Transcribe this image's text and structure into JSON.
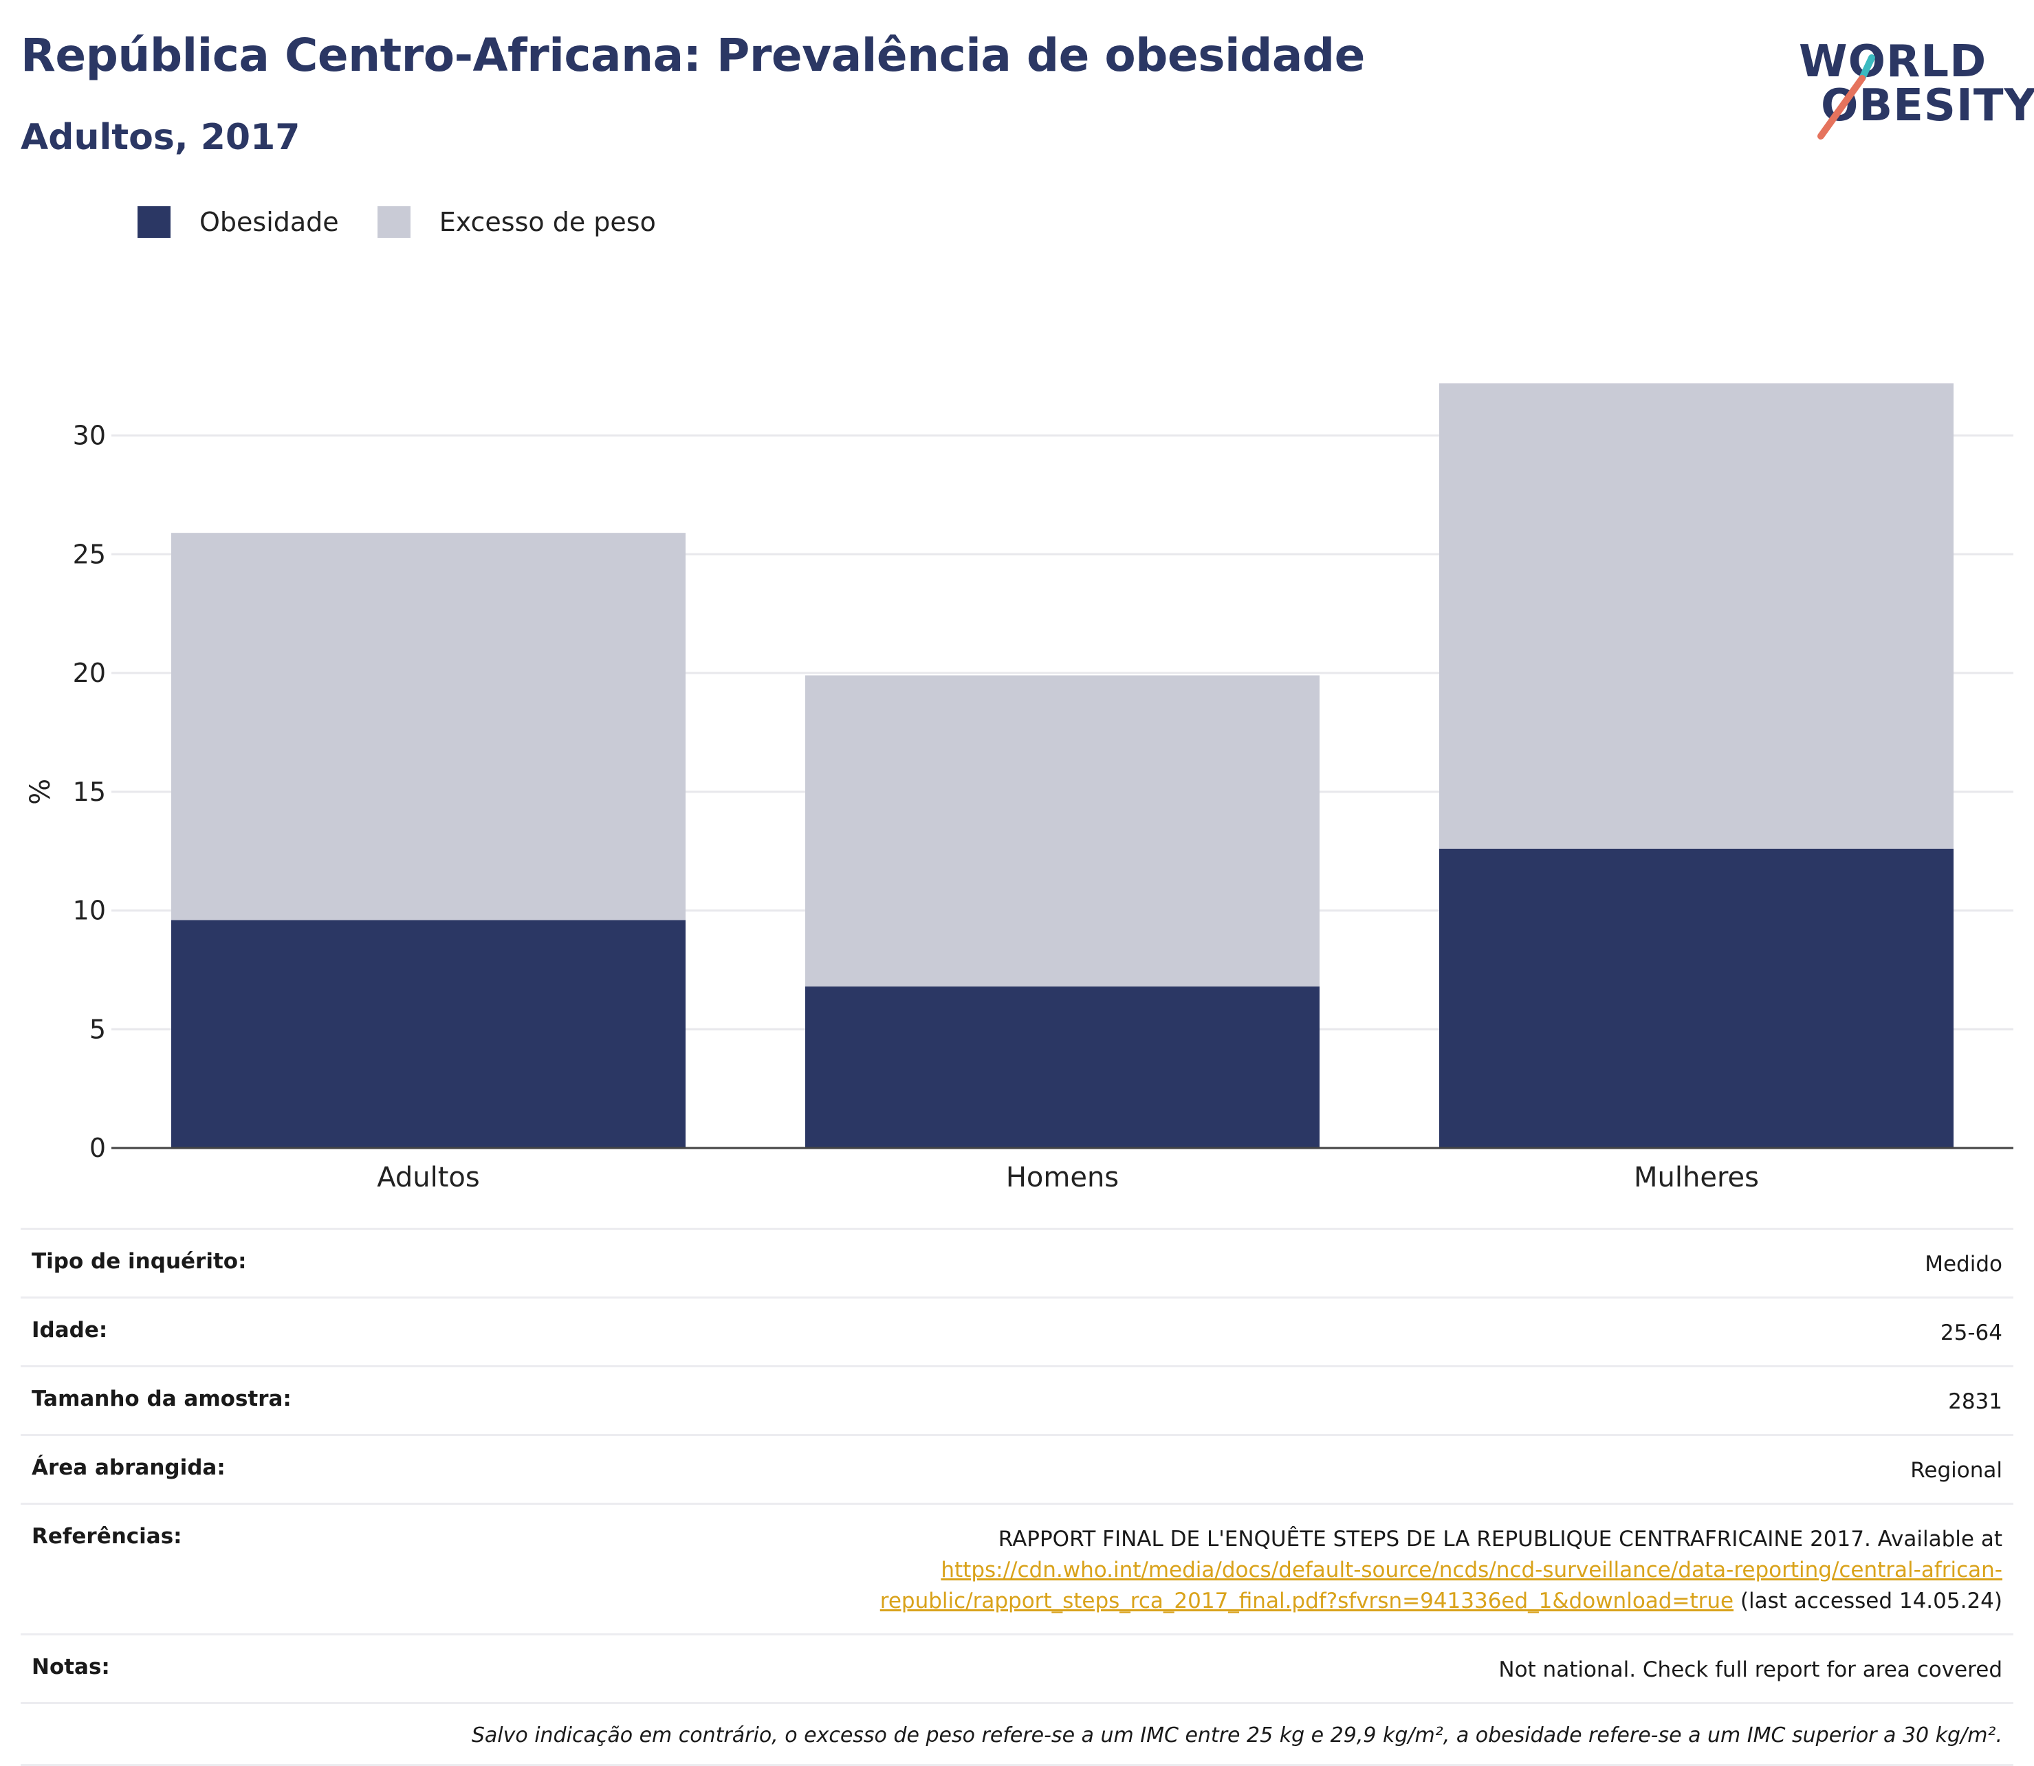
{
  "header": {
    "title": "República Centro-Africana: Prevalência de obesidade",
    "subtitle": "Adultos, 2017",
    "logo": {
      "line1": "WORLD",
      "line2": "OBESITY",
      "accent_teal": "#3bbac0",
      "accent_coral": "#e5735d"
    }
  },
  "legend": [
    {
      "label": "Obesidade",
      "color": "#2b3764"
    },
    {
      "label": "Excesso de peso",
      "color": "#c9cbd6"
    }
  ],
  "chart_data": {
    "type": "bar",
    "stacked": true,
    "categories": [
      "Adultos",
      "Homens",
      "Mulheres"
    ],
    "series": [
      {
        "name": "Obesidade",
        "color": "#2b3764",
        "values": [
          9.6,
          6.8,
          12.6
        ]
      },
      {
        "name": "Excesso de peso",
        "color": "#c9cbd6",
        "values": [
          16.3,
          13.1,
          19.6
        ]
      }
    ],
    "ylabel": "%",
    "ylim": [
      0,
      33
    ],
    "yticks": [
      0,
      5,
      10,
      15,
      20,
      25,
      30
    ],
    "grid": true,
    "legend_position": "top-left"
  },
  "info": {
    "rows": [
      {
        "label": "Tipo de inquérito:",
        "value": "Medido"
      },
      {
        "label": "Idade:",
        "value": "25-64"
      },
      {
        "label": "Tamanho da amostra:",
        "value": "2831"
      },
      {
        "label": "Área abrangida:",
        "value": "Regional"
      }
    ],
    "references": {
      "label": "Referências:",
      "text_before": "RAPPORT FINAL DE L'ENQUÊTE STEPS DE LA REPUBLIQUE CENTRAFRICAINE 2017. Available at",
      "link_line1": "https://cdn.who.int/media/docs/default-source/ncds/ncd-surveillance/data-reporting/central-african-",
      "link_line2": "republic/rapport_steps_rca_2017_final.pdf?sfvrsn=941336ed_1&download=true",
      "text_after": "(last accessed 14.05.24)"
    },
    "notes": {
      "label": "Notas:",
      "value": "Not national. Check full report for area covered"
    },
    "footnote": "Salvo indicação em contrário, o excesso de peso refere-se a um IMC entre 25 kg e 29,9 kg/m², a obesidade refere-se a um IMC superior a 30 kg/m²."
  }
}
